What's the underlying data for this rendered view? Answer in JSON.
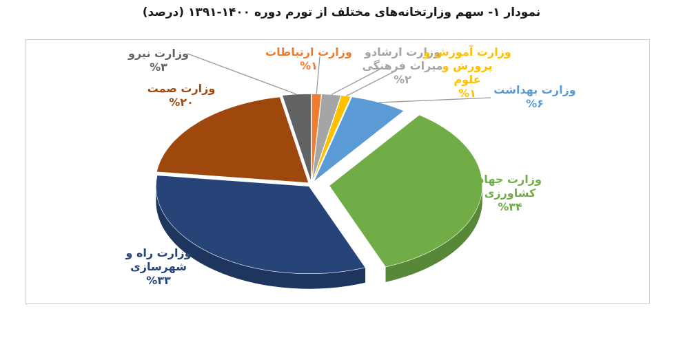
{
  "title": "نمودار ۱- سهم وزارتخانه‌های مختلف از تورم دوره ۱۴۰۰-۱۳۹۱ (درصد)",
  "colors": {
    "frame": "#c9c9c9",
    "leader": "#9a9a9a"
  },
  "chart_data": {
    "type": "pie",
    "style": "3d-exploded",
    "unit": "%",
    "legend": "none",
    "slices": [
      {
        "name": "وزارت ارتباطات",
        "value": 1,
        "color": "#ed7d31",
        "label_lines": [
          "وزارت ارتباطات",
          "%۱"
        ]
      },
      {
        "name": "وزارت ارشاد و میراث فرهنگی",
        "value": 2,
        "color": "#a5a5a5",
        "label_lines": [
          "وزارت ارشادو",
          "میراث فرهنگی",
          "%۲"
        ]
      },
      {
        "name": "وزارت آموزش و پرورش و علوم",
        "value": 1,
        "color": "#ffc000",
        "label_lines": [
          "وزارت آموزش و",
          "پرورش و",
          "علوم",
          "%۱"
        ]
      },
      {
        "name": "وزارت بهداشت",
        "value": 6,
        "color": "#5b9bd5",
        "label_lines": [
          "وزارت بهداشت",
          "%۶"
        ]
      },
      {
        "name": "وزارت جهاد کشاورزی",
        "value": 34,
        "color": "#70ad47",
        "label_lines": [
          "وزارت جهاد",
          "کشاورزی",
          "%۳۴"
        ]
      },
      {
        "name": "وزارت راه و شهرسازی",
        "value": 33,
        "color": "#264478",
        "label_lines": [
          "وزارت راه و",
          "شهرسازی",
          "%۳۳"
        ]
      },
      {
        "name": "وزارت صمت",
        "value": 20,
        "color": "#9e480e",
        "label_lines": [
          "وزارت صمت",
          "%۲۰"
        ]
      },
      {
        "name": "وزارت نیرو",
        "value": 3,
        "color": "#636363",
        "label_lines": [
          "وزارت نیرو",
          "%۳"
        ]
      }
    ]
  }
}
